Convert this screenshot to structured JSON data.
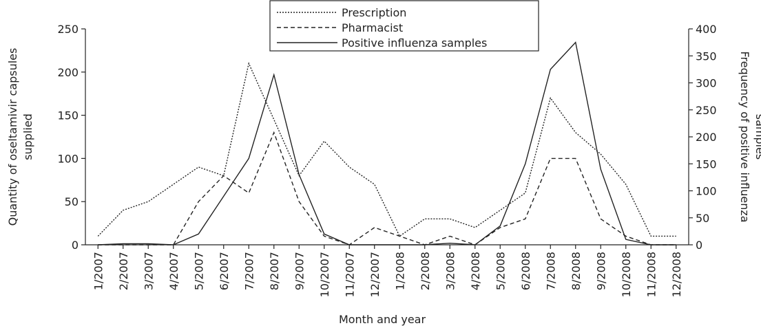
{
  "chart_data": {
    "type": "line",
    "xlabel": "Month and year",
    "ylabel": [
      "Quantity of oseltamivir capsules",
      "supplied"
    ],
    "y2label": [
      "Frequency of positive influenza",
      "samples"
    ],
    "categories": [
      "1/2007",
      "2/2007",
      "3/2007",
      "4/2007",
      "5/2007",
      "6/2007",
      "7/2007",
      "8/2007",
      "9/2007",
      "10/2007",
      "11/2007",
      "12/2007",
      "1/2008",
      "2/2008",
      "3/2008",
      "4/2008",
      "5/2008",
      "6/2008",
      "7/2008",
      "8/2008",
      "9/2008",
      "10/2008",
      "11/2008",
      "12/2008"
    ],
    "series": [
      {
        "name": "Prescription",
        "color": "#222222",
        "dash": "dotted",
        "values": [
          10,
          40,
          50,
          70,
          90,
          80,
          210,
          145,
          80,
          120,
          90,
          70,
          10,
          30,
          30,
          20,
          40,
          60,
          170,
          130,
          105,
          70,
          10,
          10
        ]
      },
      {
        "name": "Pharmacist",
        "color": "#222222",
        "dash": "dashed",
        "values": [
          0,
          0,
          0,
          0,
          50,
          80,
          60,
          130,
          50,
          10,
          0,
          20,
          10,
          0,
          10,
          0,
          20,
          30,
          100,
          100,
          30,
          10,
          0,
          0
        ]
      },
      {
        "name": "Positive influenza samples",
        "color": "#222222",
        "dash": "solid",
        "axis": "y2",
        "values": [
          0,
          2,
          2,
          0,
          20,
          90,
          160,
          315,
          130,
          20,
          0,
          0,
          0,
          0,
          3,
          0,
          35,
          150,
          325,
          375,
          140,
          10,
          0,
          0
        ]
      }
    ],
    "ylim": [
      0,
      250
    ],
    "yticks": [
      0,
      50,
      100,
      150,
      200,
      250
    ],
    "y2lim": [
      0,
      400
    ],
    "y2ticks": [
      0,
      50,
      100,
      150,
      200,
      250,
      300,
      350,
      400
    ],
    "legend": "top"
  }
}
